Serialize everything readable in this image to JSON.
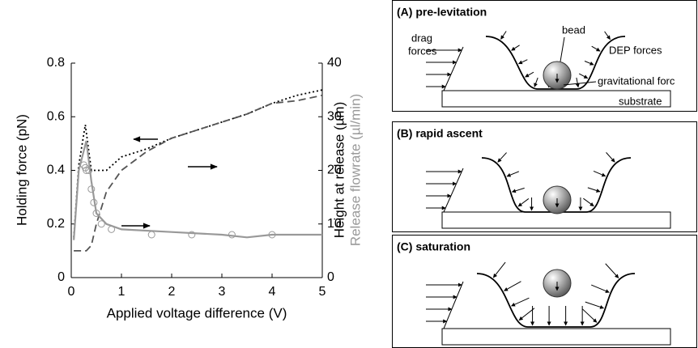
{
  "chart_data": {
    "type": "line",
    "xlabel": "Applied voltage difference (V)",
    "ylabel": "Holding force (pN)",
    "y2labels": [
      "Height at release (µm)",
      "Release flowrate (µl/min)"
    ],
    "xlim": [
      0,
      5
    ],
    "xticks": [
      0,
      1,
      2,
      3,
      4,
      5
    ],
    "ylim": [
      0,
      0.8
    ],
    "yticks": [
      0,
      0.2,
      0.4,
      0.6,
      0.8
    ],
    "y2lim": [
      0,
      40
    ],
    "y2ticks": [
      0,
      10,
      20,
      30,
      40
    ],
    "series": [
      {
        "color": "#000000",
        "style": "dotted",
        "axis": "y",
        "x": [
          0.05,
          0.15,
          0.28,
          0.4,
          0.7,
          1,
          1.5,
          2,
          2.5,
          3,
          3.5,
          4,
          4.5,
          5
        ],
        "values": [
          0.15,
          0.42,
          0.57,
          0.4,
          0.4,
          0.45,
          0.48,
          0.52,
          0.55,
          0.58,
          0.61,
          0.65,
          0.68,
          0.7
        ]
      },
      {
        "color": "#555555",
        "style": "dashed",
        "axis": "y2",
        "x": [
          0.05,
          0.3,
          0.4,
          0.5,
          0.7,
          1,
          1.5,
          2,
          2.5,
          3,
          3.5,
          4,
          4.5,
          5
        ],
        "values": [
          5,
          5,
          6,
          10,
          16,
          20,
          23.5,
          26,
          27.5,
          29,
          30.5,
          32.5,
          33,
          34
        ]
      },
      {
        "color": "#999999",
        "style": "solid",
        "axis": "y2",
        "x": [
          0.05,
          0.15,
          0.3,
          0.4,
          0.5,
          0.7,
          1,
          2,
          3,
          3.5,
          4,
          5
        ],
        "values": [
          7,
          20,
          25.5,
          18,
          12,
          10,
          9,
          8.5,
          8,
          7.5,
          8,
          8
        ]
      },
      {
        "color": "#999999",
        "style": "markers",
        "axis": "y2",
        "x": [
          0.25,
          0.28,
          0.3,
          0.35,
          0.4,
          0.45,
          0.5,
          0.6,
          0.8,
          1.6,
          2.4,
          3.2,
          4
        ],
        "values": [
          21,
          20.5,
          20,
          20,
          16.5,
          14,
          12,
          10,
          9,
          8,
          8,
          8,
          8
        ]
      }
    ]
  },
  "panels": [
    {
      "title": "(A) pre-levitation",
      "labels": {
        "drag": [
          "drag",
          "forces"
        ],
        "bead": "bead",
        "dep": "DEP forces",
        "gravity": "gravitational forc",
        "substrate": "substrate"
      }
    },
    {
      "title": "(B) rapid ascent"
    },
    {
      "title": "(C) saturation"
    }
  ]
}
